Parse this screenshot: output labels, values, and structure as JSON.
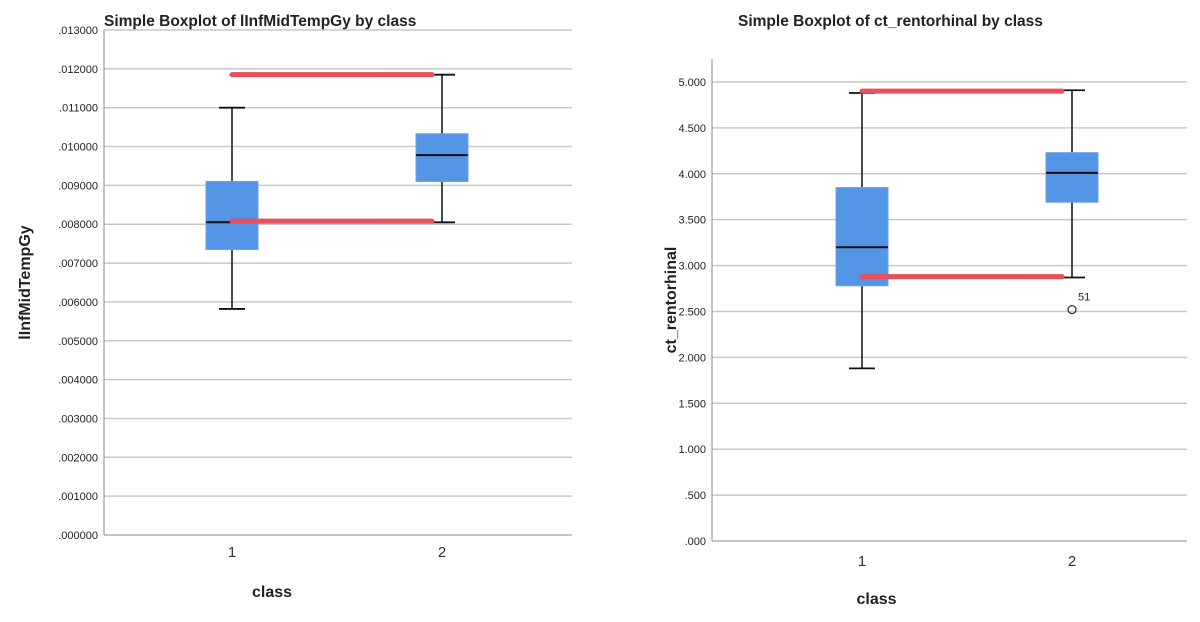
{
  "chart_data": [
    {
      "type": "boxplot",
      "title": "Simple Boxplot of lInfMidTempGy by class",
      "xlabel": "class",
      "ylabel": "lInfMidTempGy",
      "ylim": [
        0,
        0.013
      ],
      "yticks": [
        0,
        0.001,
        0.002,
        0.003,
        0.004,
        0.005,
        0.006,
        0.007,
        0.008,
        0.009,
        0.01,
        0.011,
        0.012,
        0.013
      ],
      "ytick_labels": [
        ".000000",
        ".001000",
        ".002000",
        ".003000",
        ".004000",
        ".005000",
        ".006000",
        ".007000",
        ".008000",
        ".009000",
        ".010000",
        ".011000",
        ".012000",
        ".013000"
      ],
      "categories": [
        "1",
        "2"
      ],
      "boxes": [
        {
          "category": "1",
          "min": 0.00582,
          "q1": 0.00735,
          "median": 0.00805,
          "q3": 0.0091,
          "max": 0.011
        },
        {
          "category": "2",
          "min": 0.00805,
          "q1": 0.0091,
          "median": 0.00978,
          "q3": 0.01033,
          "max": 0.01185
        }
      ],
      "outliers": [],
      "annotation_lines": [
        {
          "x_from": "1",
          "x_to": "2",
          "y": 0.01185,
          "color": "#e8505b"
        },
        {
          "x_from": "1",
          "x_to": "2",
          "y": 0.00808,
          "color": "#e8505b"
        }
      ],
      "grid": true,
      "box_color": "#5595e5"
    },
    {
      "type": "boxplot",
      "title": "Simple Boxplot of ct_rentorhinal by class",
      "xlabel": "class",
      "ylabel": "ct_rentorhinal",
      "ylim": [
        0,
        5.25
      ],
      "yticks": [
        0,
        0.5,
        1,
        1.5,
        2,
        2.5,
        3,
        3.5,
        4,
        4.5,
        5
      ],
      "ytick_labels": [
        ".000",
        ".500",
        "1.000",
        "1.500",
        "2.000",
        "2.500",
        "3.000",
        "3.500",
        "4.000",
        "4.500",
        "5.000"
      ],
      "categories": [
        "1",
        "2"
      ],
      "boxes": [
        {
          "category": "1",
          "min": 1.88,
          "q1": 2.78,
          "median": 3.2,
          "q3": 3.85,
          "max": 4.88
        },
        {
          "category": "2",
          "min": 2.87,
          "q1": 3.69,
          "median": 4.01,
          "q3": 4.23,
          "max": 4.91
        }
      ],
      "outliers": [
        {
          "category": "2",
          "value": 2.52,
          "label": "51"
        }
      ],
      "annotation_lines": [
        {
          "x_from": "1",
          "x_to": "2",
          "y": 4.9,
          "color": "#e8505b"
        },
        {
          "x_from": "1",
          "x_to": "2",
          "y": 2.88,
          "color": "#e8505b"
        }
      ],
      "grid": true,
      "box_color": "#5595e5"
    }
  ]
}
